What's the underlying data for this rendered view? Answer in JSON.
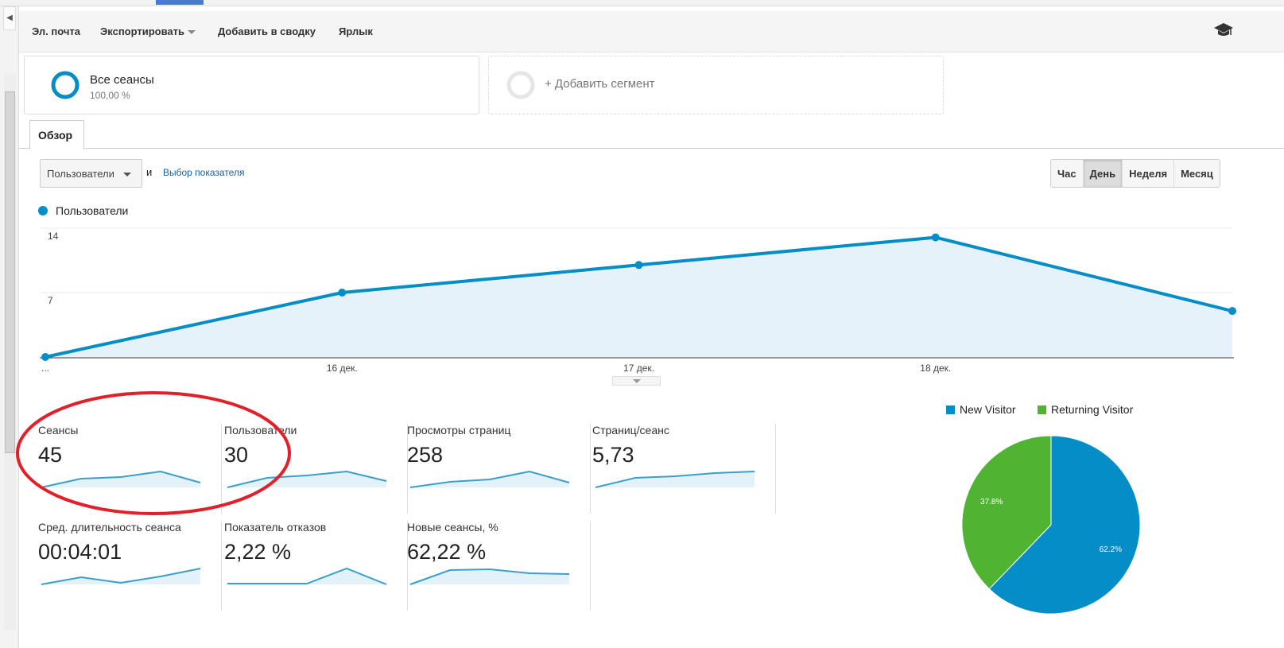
{
  "toolbar": {
    "email": "Эл. почта",
    "export": "Экспортировать",
    "add_dashboard": "Добавить в сводку",
    "shortcut": "Ярлык",
    "icon": "graduation-cap-icon"
  },
  "segments": {
    "all": {
      "title": "Все сеансы",
      "percent": "100,00 %"
    },
    "add": "+ Добавить сегмент"
  },
  "tabs": [
    {
      "label": "Обзор"
    }
  ],
  "controls": {
    "metric": "Пользователи",
    "and": "и",
    "choose_metric": "Выбор показателя",
    "periods": [
      "Час",
      "День",
      "Неделя",
      "Месяц"
    ],
    "active_period": "День"
  },
  "chart_data": [
    {
      "type": "area",
      "legend": [
        "Пользователи"
      ],
      "x": [
        "...",
        "16 дек.",
        "17 дек.",
        "18 дек.",
        ""
      ],
      "series": [
        {
          "name": "Пользователи",
          "values": [
            0,
            7,
            10,
            13,
            5
          ],
          "color": "#058dc7"
        }
      ],
      "yticks": [
        "7",
        "14"
      ],
      "ylim": [
        0,
        14
      ],
      "grid": true,
      "legend_placement": "top-left"
    },
    {
      "type": "pie",
      "legend": [
        "New Visitor",
        "Returning Visitor"
      ],
      "values": [
        62.2,
        37.8
      ],
      "labels": [
        "62.2%",
        "37.8%"
      ],
      "colors": [
        "#058dc7",
        "#50b432"
      ],
      "legend_placement": "top"
    }
  ],
  "metrics": [
    {
      "label": "Сеансы",
      "value": "45",
      "spark": [
        0,
        0.55,
        0.65,
        1,
        0.3
      ]
    },
    {
      "label": "Пользователи",
      "value": "30",
      "spark": [
        0,
        0.6,
        0.75,
        1,
        0.4
      ]
    },
    {
      "label": "Просмотры страниц",
      "value": "258",
      "spark": [
        0,
        0.35,
        0.5,
        1,
        0.3
      ]
    },
    {
      "label": "Страниц/сеанс",
      "value": "5,73",
      "spark": [
        0,
        0.6,
        0.7,
        0.9,
        1
      ]
    },
    {
      "label": "Сред. длительность сеанса",
      "value": "00:04:01",
      "spark": [
        0,
        0.45,
        0.1,
        0.5,
        1
      ]
    },
    {
      "label": "Показатель отказов",
      "value": "2,22 %",
      "spark": [
        0.05,
        0.05,
        0.05,
        1,
        0
      ]
    },
    {
      "label": "Новые сеансы, %",
      "value": "62,22 %",
      "spark": [
        0,
        0.9,
        0.95,
        0.7,
        0.65
      ]
    }
  ]
}
